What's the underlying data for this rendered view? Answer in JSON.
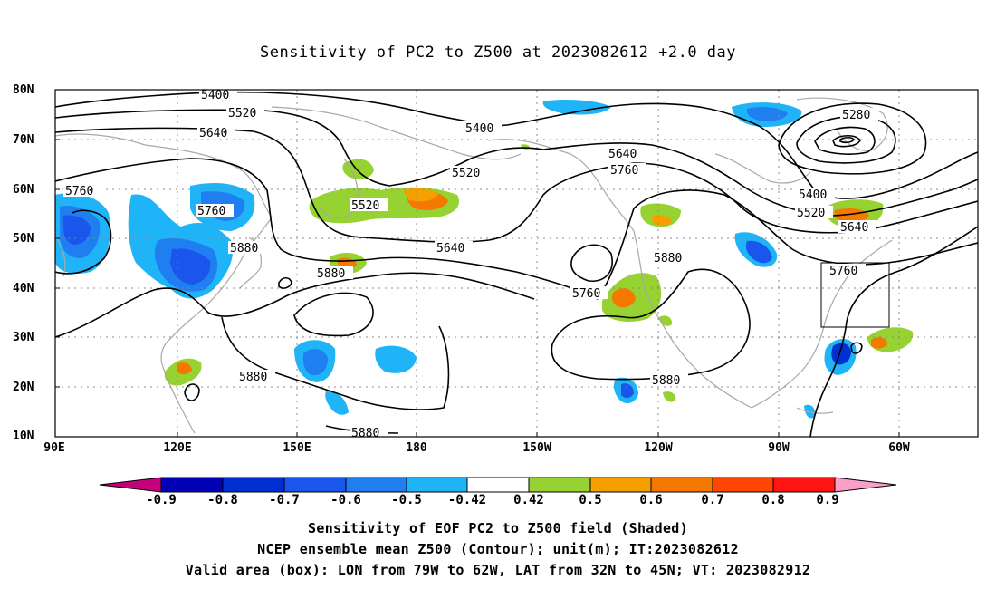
{
  "title": "Sensitivity of PC2 to Z500 at 2023082612 +2.0 day",
  "lat_labels": [
    "80N",
    "70N",
    "60N",
    "50N",
    "40N",
    "30N",
    "20N",
    "10N"
  ],
  "lon_labels": [
    "90E",
    "120E",
    "150E",
    "180",
    "150W",
    "120W",
    "90W",
    "60W"
  ],
  "contour_labels": [
    "5400",
    "5520",
    "5640",
    "5760",
    "5520",
    "5400",
    "5640",
    "5760",
    "5520",
    "5280",
    "5400",
    "5520",
    "5640",
    "5760",
    "5880",
    "5640",
    "5760",
    "5880",
    "5880",
    "5880",
    "5880"
  ],
  "colorbar": {
    "labels": [
      "-0.9",
      "-0.8",
      "-0.7",
      "-0.6",
      "-0.5",
      "-0.42",
      "0.42",
      "0.5",
      "0.6",
      "0.7",
      "0.8",
      "0.9"
    ],
    "colors": [
      "#c6007a",
      "#0000b4",
      "#0030d2",
      "#1a55ec",
      "#1f7ef0",
      "#1fb4f8",
      "#ffffff",
      "#96d232",
      "#f5a000",
      "#f57800",
      "#ff4600",
      "#ff1414",
      "#f8a0c8"
    ]
  },
  "captions": [
    "Sensitivity of EOF PC2 to Z500 field (Shaded)",
    "NCEP ensemble mean Z500 (Contour); unit(m); IT:2023082612",
    "Valid area (box): LON from 79W to 62W, LAT from 32N to 45N; VT: 2023082912"
  ]
}
